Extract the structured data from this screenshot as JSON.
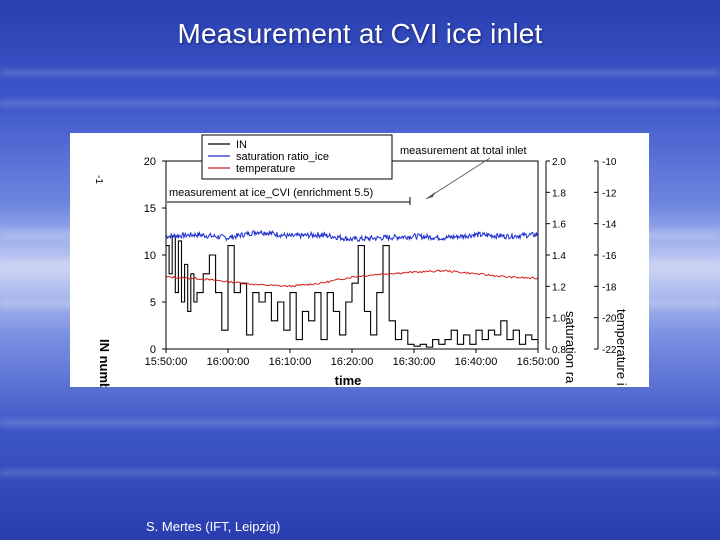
{
  "slide": {
    "title": "Measurement at CVI ice inlet",
    "footer": "S. Mertes (IFT, Leipzig)"
  },
  "colors": {
    "IN": "#000000",
    "saturation_ratio_ice": "#1f2fd0",
    "temperature": "#d02020"
  },
  "chart_data": {
    "type": "line",
    "xlabel": "time",
    "ylabel_left": "IN numb",
    "ylabel_right1": "saturation ra",
    "ylabel_right2": "temperature i",
    "ylabel_left_exponent": "-1",
    "x_ticks": [
      "15:50:00",
      "16:00:00",
      "16:10:00",
      "16:20:00",
      "16:30:00",
      "16:40:00",
      "16:50:00"
    ],
    "x_range_minutes": [
      0,
      60
    ],
    "y_left": {
      "range": [
        0,
        20
      ],
      "ticks": [
        0,
        5,
        10,
        15,
        20
      ]
    },
    "y_right1": {
      "range": [
        0.8,
        2.0
      ],
      "ticks": [
        0.8,
        1.0,
        1.2,
        1.4,
        1.6,
        1.8,
        2.0
      ]
    },
    "y_right2": {
      "range": [
        -22,
        -10
      ],
      "ticks": [
        -22,
        -20,
        -18,
        -16,
        -14,
        -12,
        -10
      ]
    },
    "legend": {
      "placement": "top-center",
      "entries": [
        "IN",
        "saturation ratio_ice",
        "temperature"
      ]
    },
    "annotations": [
      {
        "text": "measurement at total inlet",
        "target": "after 16:50 (total inlet)"
      },
      {
        "text": "measurement at ice_CVI (enrichment 5.5)",
        "target": "15:50–16:50 (ice CVI)"
      }
    ],
    "series": [
      {
        "name": "IN",
        "axis": "left",
        "x": [
          0,
          0.5,
          1,
          1.5,
          2,
          2.5,
          3,
          3.5,
          4,
          4.5,
          5,
          6,
          7,
          8,
          9,
          10,
          11,
          12,
          13,
          14,
          15,
          16,
          17,
          18,
          19,
          20,
          21,
          22,
          23,
          24,
          25,
          26,
          27,
          28,
          29,
          30,
          31,
          32,
          33,
          34,
          35,
          36,
          37,
          38,
          39,
          40,
          41,
          42,
          43,
          44,
          45,
          46,
          47,
          48,
          49,
          50,
          51,
          52,
          53,
          54,
          55,
          56,
          57,
          58,
          59,
          60
        ],
        "y": [
          11,
          8,
          12,
          6,
          11.5,
          5,
          9,
          4,
          8,
          5,
          6,
          8,
          10,
          6,
          2,
          11,
          6,
          7,
          1.5,
          6,
          5,
          6,
          3,
          5,
          2,
          6,
          1,
          4,
          3,
          6,
          1,
          6,
          4,
          1.5,
          5,
          7,
          11,
          4,
          1.5,
          6,
          11,
          3,
          1,
          2,
          0.5,
          0.3,
          0.5,
          0.2,
          1,
          0.5,
          1,
          2,
          0.5,
          1.5,
          0.5,
          2,
          1,
          2,
          1.5,
          3,
          1,
          2,
          0.5,
          1.5,
          1,
          0.5
        ]
      },
      {
        "name": "saturation ratio_ice",
        "axis": "right1",
        "x": [
          0,
          5,
          10,
          15,
          20,
          25,
          30,
          35,
          40,
          45,
          50,
          55,
          60
        ],
        "y": [
          1.52,
          1.53,
          1.51,
          1.55,
          1.52,
          1.53,
          1.5,
          1.51,
          1.52,
          1.51,
          1.53,
          1.52,
          1.53
        ]
      },
      {
        "name": "temperature",
        "axis": "right2",
        "x": [
          0,
          5,
          10,
          15,
          20,
          25,
          30,
          35,
          40,
          45,
          50,
          55,
          60
        ],
        "y": [
          -17.4,
          -17.5,
          -17.7,
          -17.9,
          -18.0,
          -17.8,
          -17.4,
          -17.2,
          -17.1,
          -17.0,
          -17.2,
          -17.4,
          -17.5
        ]
      }
    ]
  }
}
